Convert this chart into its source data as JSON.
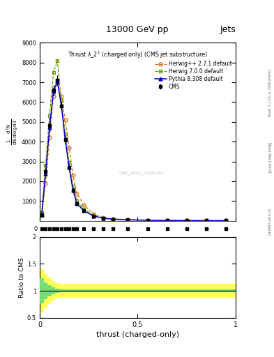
{
  "title_top": "13000 GeV pp",
  "title_right": "Jets",
  "watermark": "CMS_2021_I1920187",
  "rivet_text": "Rivet 3.1.10, ≥ 500k events",
  "arxiv_text": "[arXiv:1306.3436]",
  "mcplots_text": "mcplots.cern.ch",
  "xlabel": "thrust (charged-only)",
  "ylabel_ratio": "Ratio to CMS",
  "ylim_main": [
    0,
    9000
  ],
  "ylim_strip": [
    -0.5,
    0.5
  ],
  "ylim_ratio": [
    0.5,
    2.0
  ],
  "xlim": [
    0.0,
    1.0
  ],
  "yticks_main": [
    1000,
    2000,
    3000,
    4000,
    5000,
    6000,
    7000,
    8000,
    9000
  ],
  "yticks_ratio": [
    0.5,
    1.0,
    1.5,
    2.0
  ],
  "thrust_bins": [
    0.0,
    0.02,
    0.04,
    0.06,
    0.08,
    0.1,
    0.12,
    0.14,
    0.16,
    0.18,
    0.2,
    0.25,
    0.3,
    0.35,
    0.4,
    0.5,
    0.6,
    0.7,
    0.8,
    0.9,
    1.0
  ],
  "cms_values": [
    300,
    2500,
    4800,
    6600,
    7100,
    5800,
    4100,
    2700,
    1550,
    850,
    500,
    230,
    120,
    70,
    42,
    20,
    10,
    6,
    4,
    2
  ],
  "cms_errors": [
    100,
    200,
    250,
    280,
    260,
    220,
    180,
    150,
    110,
    70,
    50,
    25,
    15,
    10,
    7,
    4,
    3,
    2,
    2,
    1
  ],
  "herwig_pp_values": [
    250,
    1900,
    4200,
    6300,
    7000,
    6300,
    5100,
    3700,
    2300,
    1350,
    800,
    330,
    165,
    95,
    58,
    28,
    14,
    8,
    5,
    3
  ],
  "herwig70_values": [
    400,
    2800,
    5300,
    7500,
    8100,
    6100,
    4400,
    2950,
    1750,
    1000,
    590,
    265,
    140,
    84,
    52,
    26,
    13,
    8,
    5,
    3
  ],
  "pythia_values": [
    310,
    2400,
    4700,
    6550,
    7050,
    5850,
    4100,
    2700,
    1530,
    860,
    510,
    235,
    122,
    74,
    46,
    23,
    11,
    7,
    4,
    2
  ],
  "cms_color": "#000000",
  "herwig_pp_color": "#cc7722",
  "herwig70_color": "#669900",
  "pythia_color": "#0000cc",
  "legend_entries": [
    "CMS",
    "Herwig++ 2.7.1 default",
    "Herwig 7.0.0 default",
    "Pythia 8.308 default"
  ],
  "ratio_band_yellow": "#ffff55",
  "ratio_band_green": "#77dd77",
  "yellow_lo": [
    0.6,
    0.68,
    0.75,
    0.82,
    0.86,
    0.87,
    0.87,
    0.87,
    0.87,
    0.87,
    0.87,
    0.87,
    0.87,
    0.87,
    0.87,
    0.87,
    0.87,
    0.87,
    0.87,
    0.87
  ],
  "yellow_hi": [
    1.4,
    1.32,
    1.25,
    1.18,
    1.14,
    1.13,
    1.13,
    1.13,
    1.13,
    1.13,
    1.13,
    1.13,
    1.13,
    1.13,
    1.13,
    1.13,
    1.13,
    1.13,
    1.13,
    1.13
  ],
  "green_lo": [
    0.77,
    0.85,
    0.9,
    0.94,
    0.96,
    0.97,
    0.97,
    0.97,
    0.97,
    0.97,
    0.97,
    0.97,
    0.97,
    0.97,
    0.97,
    0.97,
    0.97,
    0.97,
    0.97,
    0.97
  ],
  "green_hi": [
    1.23,
    1.15,
    1.1,
    1.06,
    1.04,
    1.03,
    1.03,
    1.03,
    1.03,
    1.03,
    1.03,
    1.03,
    1.03,
    1.03,
    1.03,
    1.03,
    1.03,
    1.03,
    1.03,
    1.03
  ]
}
